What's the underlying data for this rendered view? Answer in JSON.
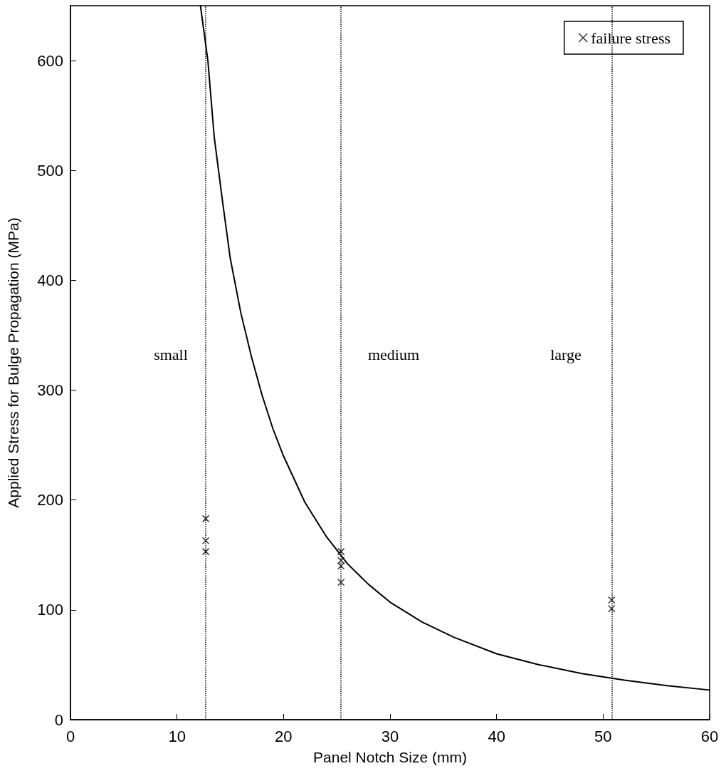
{
  "chart_data": {
    "type": "line",
    "xlabel": "Panel Notch Size (mm)",
    "ylabel": "Applied Stress for Bulge Propagation (MPa)",
    "xlim": [
      0,
      60
    ],
    "xticks": [
      0,
      10,
      20,
      30,
      40,
      50,
      60
    ],
    "ylim": [
      0,
      650
    ],
    "yticks": [
      0,
      100,
      200,
      300,
      400,
      500,
      600
    ],
    "grid": false,
    "legend": "top right",
    "series": [
      {
        "color": "#000000",
        "marker": "none",
        "line_style": "solid",
        "x": [
          12.2,
          12.9,
          13.5,
          14.3,
          15,
          16,
          17,
          18,
          19,
          20,
          22,
          24,
          26,
          28,
          30,
          33,
          36,
          40,
          44,
          48,
          52,
          56,
          60
        ],
        "values": [
          650,
          600,
          530,
          470,
          420,
          370,
          330,
          295,
          265,
          240,
          198,
          167,
          142,
          123,
          107,
          89,
          75,
          60,
          50,
          42,
          36,
          31,
          27
        ]
      },
      {
        "type": "scatter",
        "name": "failure stress",
        "color": "#000000",
        "marker": "cross",
        "x": [
          12.7,
          12.7,
          12.7,
          25.4,
          25.4,
          25.4,
          25.4,
          50.8,
          50.8
        ],
        "values": [
          183,
          163,
          153,
          153,
          145,
          140,
          125,
          109,
          101
        ]
      }
    ],
    "ref_lines": [
      {
        "axis": "x",
        "value": 12.7,
        "color": "#000000",
        "line_style": "dotted"
      },
      {
        "axis": "x",
        "value": 25.4,
        "color": "#000000",
        "line_style": "dotted"
      },
      {
        "axis": "x",
        "value": 50.8,
        "color": "#000000",
        "line_style": "dotted"
      }
    ],
    "annotations": [
      "small",
      "medium",
      "large"
    ]
  }
}
